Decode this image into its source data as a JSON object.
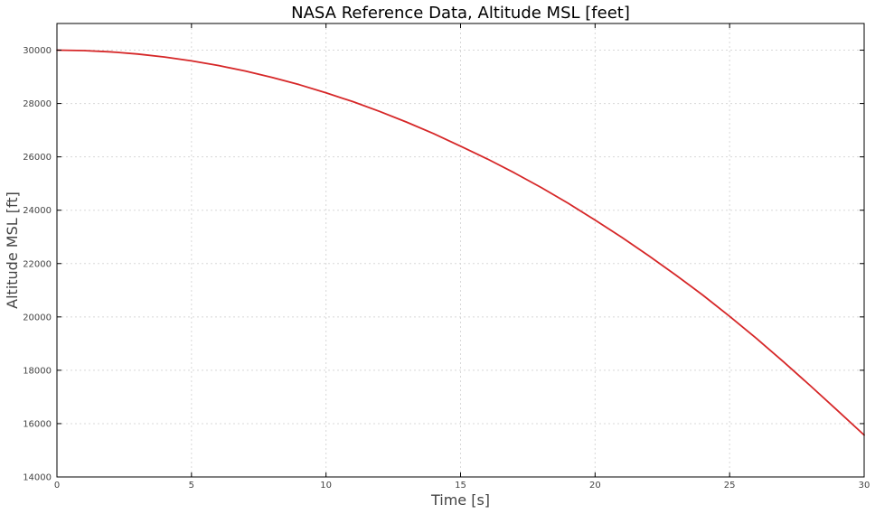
{
  "chart_data": {
    "type": "line",
    "title": "NASA Reference Data, Altitude MSL [feet]",
    "xlabel": "Time [s]",
    "ylabel": "Altitude MSL [ft]",
    "xlim": [
      0,
      30
    ],
    "ylim": [
      14000,
      31000
    ],
    "xticks": [
      0,
      5,
      10,
      15,
      20,
      25,
      30
    ],
    "yticks": [
      14000,
      16000,
      18000,
      20000,
      22000,
      24000,
      26000,
      28000,
      30000
    ],
    "grid": true,
    "legend": "none",
    "series": [
      {
        "color": "#d62728",
        "x": [
          0,
          1,
          2,
          3,
          4,
          5,
          6,
          7,
          8,
          9,
          10,
          11,
          12,
          13,
          14,
          15,
          16,
          17,
          18,
          19,
          20,
          21,
          22,
          23,
          24,
          25,
          26,
          27,
          28,
          29,
          30
        ],
        "y": [
          30000,
          29984,
          29936,
          29855,
          29743,
          29600,
          29424,
          29217,
          28978,
          28708,
          28400,
          28070,
          27700,
          27300,
          26870,
          26400,
          25920,
          25400,
          24850,
          24260,
          23630,
          22980,
          22290,
          21570,
          20820,
          20020,
          19190,
          18320,
          17420,
          16500,
          15570
        ]
      }
    ]
  }
}
